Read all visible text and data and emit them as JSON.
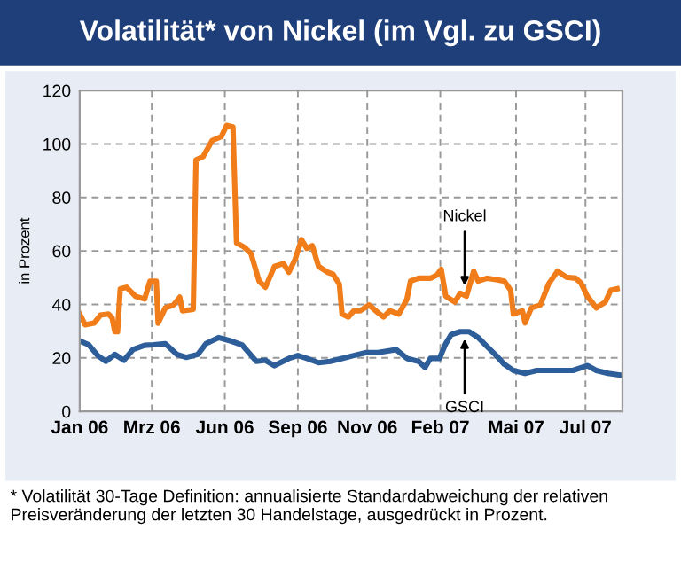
{
  "chart_data": {
    "type": "line",
    "title": "Volatilität* von Nickel (im Vgl. zu GSCI)",
    "ylabel": "in Prozent",
    "xlim": [
      "2006-01-02",
      "2007-08-27"
    ],
    "xticks": [
      {
        "value": "2006-01-02",
        "label": "Jan 06"
      },
      {
        "value": "2006-03-23",
        "label": "Mrz 06"
      },
      {
        "value": "2006-06-12",
        "label": "Jun 06"
      },
      {
        "value": "2006-09-01",
        "label": "Sep 06"
      },
      {
        "value": "2006-11-17",
        "label": "Nov 06"
      },
      {
        "value": "2007-02-06",
        "label": "Feb 07"
      },
      {
        "value": "2007-05-01",
        "label": "Mai 07"
      },
      {
        "value": "2007-07-17",
        "label": "Jul 07"
      }
    ],
    "ylim": [
      0,
      120
    ],
    "yticks": [
      0,
      20,
      40,
      60,
      80,
      100,
      120
    ],
    "grid": true,
    "line_style": "solid",
    "marker": "none",
    "series": [
      {
        "color": "#f07d1a",
        "x": [
          "2006-01-02",
          "2006-01-08",
          "2006-01-18",
          "2006-01-25",
          "2006-02-03",
          "2006-02-07",
          "2006-02-10",
          "2006-02-13",
          "2006-02-16",
          "2006-02-23",
          "2006-03-05",
          "2006-03-15",
          "2006-03-21",
          "2006-03-28",
          "2006-03-30",
          "2006-04-07",
          "2006-04-16",
          "2006-04-23",
          "2006-04-26",
          "2006-05-08",
          "2006-05-11",
          "2006-05-19",
          "2006-05-29",
          "2006-06-08",
          "2006-06-14",
          "2006-06-21",
          "2006-06-25",
          "2006-07-04",
          "2006-07-11",
          "2006-07-20",
          "2006-07-27",
          "2006-08-06",
          "2006-08-16",
          "2006-08-22",
          "2006-08-29",
          "2006-09-05",
          "2006-09-11",
          "2006-09-17",
          "2006-09-24",
          "2006-10-04",
          "2006-10-10",
          "2006-10-17",
          "2006-10-20",
          "2006-10-27",
          "2006-11-02",
          "2006-11-09",
          "2006-11-19",
          "2006-11-29",
          "2006-12-05",
          "2006-12-12",
          "2006-12-22",
          "2006-12-31",
          "2007-01-04",
          "2007-01-13",
          "2007-01-26",
          "2007-02-02",
          "2007-02-07",
          "2007-02-12",
          "2007-02-22",
          "2007-02-28",
          "2007-03-07",
          "2007-03-15",
          "2007-03-20",
          "2007-03-30",
          "2007-04-09",
          "2007-04-18",
          "2007-04-25",
          "2007-04-28",
          "2007-05-08",
          "2007-05-11",
          "2007-05-18",
          "2007-05-28",
          "2007-06-06",
          "2007-06-16",
          "2007-06-26",
          "2007-07-06",
          "2007-07-12",
          "2007-07-19",
          "2007-07-29",
          "2007-08-08",
          "2007-08-14",
          "2007-08-21"
        ],
        "values": [
          36.4,
          32.4,
          33,
          36,
          36.4,
          35,
          29.8,
          29.8,
          45.8,
          46.4,
          43,
          42,
          48.7,
          48.7,
          33,
          38.7,
          39.8,
          42.7,
          37.6,
          38.2,
          94,
          95.3,
          101.3,
          102.7,
          106.9,
          106.4,
          63,
          61.3,
          59,
          48.7,
          46.4,
          54.2,
          55.3,
          52,
          56.9,
          64.2,
          60.9,
          62,
          54.2,
          52,
          51.3,
          47.6,
          36.4,
          35.3,
          37.6,
          37.6,
          39.8,
          36.9,
          35.3,
          37.6,
          36.4,
          42,
          48.7,
          49.8,
          49.8,
          50.9,
          53.1,
          43.1,
          40.9,
          44.2,
          43.1,
          52.4,
          48.7,
          49.8,
          49.3,
          48.7,
          45.3,
          36.4,
          37.6,
          33.1,
          38.7,
          39.8,
          47.6,
          52.4,
          50.2,
          49.8,
          48,
          43.1,
          38.7,
          40.9,
          45.3,
          45.8
        ]
      },
      {
        "color": "#2e5e99",
        "x": [
          "2006-01-02",
          "2006-01-12",
          "2006-01-22",
          "2006-01-31",
          "2006-02-10",
          "2006-02-20",
          "2006-03-02",
          "2006-03-15",
          "2006-03-25",
          "2006-04-07",
          "2006-04-20",
          "2006-04-30",
          "2006-05-13",
          "2006-05-22",
          "2006-06-05",
          "2006-06-18",
          "2006-07-01",
          "2006-07-17",
          "2006-07-27",
          "2006-08-06",
          "2006-08-22",
          "2006-09-01",
          "2006-09-11",
          "2006-09-24",
          "2006-10-07",
          "2006-10-20",
          "2006-11-02",
          "2006-11-16",
          "2006-11-29",
          "2006-12-19",
          "2006-12-31",
          "2007-01-13",
          "2007-01-20",
          "2007-01-26",
          "2007-02-05",
          "2007-02-12",
          "2007-02-18",
          "2007-02-28",
          "2007-03-10",
          "2007-03-20",
          "2007-03-30",
          "2007-04-09",
          "2007-04-18",
          "2007-04-28",
          "2007-05-11",
          "2007-05-24",
          "2007-06-06",
          "2007-06-19",
          "2007-07-03",
          "2007-07-19",
          "2007-07-29",
          "2007-08-11",
          "2007-08-24"
        ],
        "values": [
          26.4,
          24.9,
          20.9,
          18.7,
          21.3,
          19.1,
          23.1,
          24.7,
          24.9,
          25.3,
          21.3,
          20.2,
          21.3,
          25.3,
          27.6,
          26.4,
          24.9,
          18.7,
          19.1,
          17.1,
          19.8,
          20.9,
          19.8,
          18.2,
          18.7,
          19.8,
          20.9,
          22,
          22,
          23.1,
          19.8,
          18.7,
          16.4,
          19.8,
          19.8,
          25.3,
          28.7,
          29.8,
          29.8,
          27.6,
          24.2,
          20.9,
          17.6,
          15.3,
          14.2,
          15.3,
          15.3,
          15.3,
          15.3,
          17.1,
          15.3,
          14.2,
          13.6
        ]
      }
    ],
    "annotations": [
      {
        "text": "Nickel",
        "x": "2007-03-05",
        "y": 46
      },
      {
        "text": "GSCI",
        "x": "2007-03-05",
        "y": 28
      },
      "* Volatilität 30-Tage Definition: annualisierte Standardabweichung der relativen Preisveränderung der letzten 30 Handelstage, ausgedrückt in Prozent."
    ]
  }
}
